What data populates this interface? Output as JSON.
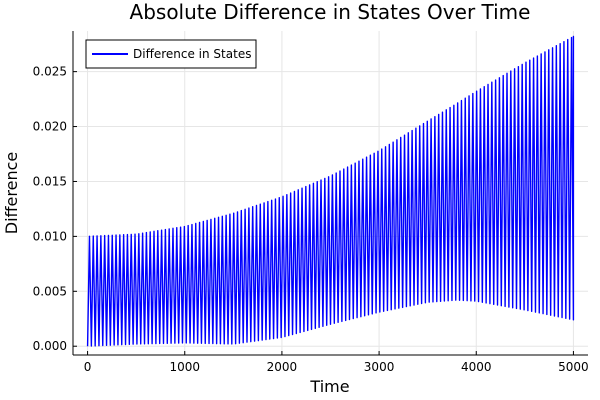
{
  "chart_data": {
    "type": "line",
    "title": "Absolute Difference in States Over Time",
    "xlabel": "Time",
    "ylabel": "Difference",
    "xlim": [
      -150,
      5150
    ],
    "ylim": [
      -0.0008,
      0.0287
    ],
    "xticks": [
      0,
      1000,
      2000,
      3000,
      4000,
      5000
    ],
    "xtick_labels": [
      "0",
      "1000",
      "2000",
      "3000",
      "4000",
      "5000"
    ],
    "yticks": [
      0.0,
      0.005,
      0.01,
      0.015,
      0.02,
      0.025
    ],
    "ytick_labels": [
      "0.000",
      "0.005",
      "0.010",
      "0.015",
      "0.020",
      "0.025"
    ],
    "grid": true,
    "legend_position": "top-left",
    "series": [
      {
        "name": "Difference in States",
        "color": "#0000ff",
        "oscillation_cycles": 128,
        "envelope_time": [
          0,
          500,
          1000,
          1500,
          2000,
          2500,
          3000,
          3500,
          3800,
          4000,
          4500,
          5000
        ],
        "upper_envelope": [
          0.01,
          0.0102,
          0.0109,
          0.0121,
          0.0136,
          0.0155,
          0.0178,
          0.0205,
          0.0221,
          0.0232,
          0.0258,
          0.0282
        ],
        "lower_envelope": [
          0.0,
          0.0002,
          0.0003,
          0.0002,
          0.0008,
          0.002,
          0.0031,
          0.004,
          0.0042,
          0.0041,
          0.0033,
          0.0024
        ],
        "final_value": 0.0178
      }
    ]
  }
}
